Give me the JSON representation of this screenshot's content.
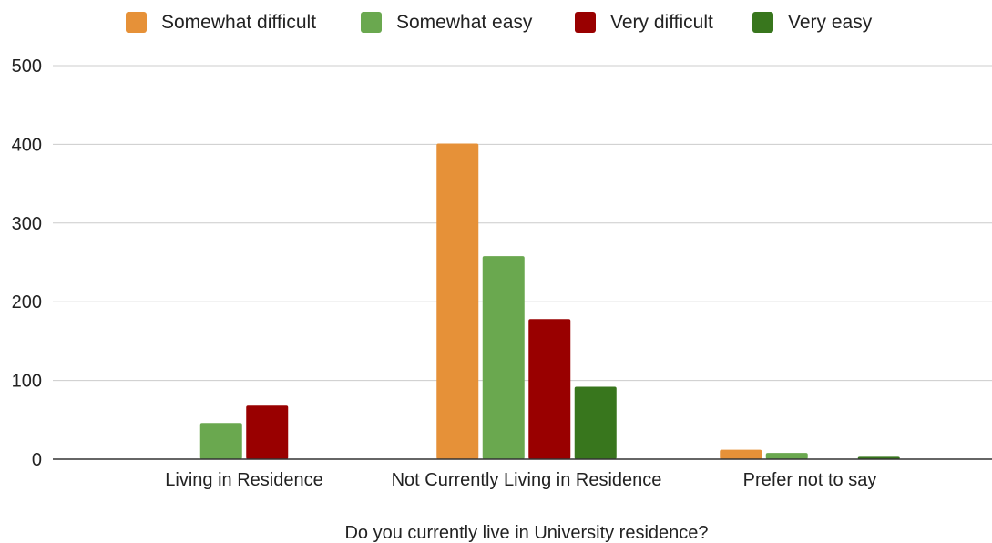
{
  "chart_data": {
    "type": "bar",
    "categories": [
      "Living in Residence",
      "Not Currently Living in Residence",
      "Prefer not to say"
    ],
    "series": [
      {
        "name": "Somewhat difficult",
        "color": "#e69138",
        "values": [
          0,
          401,
          12
        ]
      },
      {
        "name": "Somewhat easy",
        "color": "#6aa84f",
        "values": [
          46,
          258,
          8
        ]
      },
      {
        "name": "Very difficult",
        "color": "#990000",
        "values": [
          68,
          178,
          0
        ]
      },
      {
        "name": "Very easy",
        "color": "#38761d",
        "values": [
          0,
          92,
          3
        ]
      }
    ],
    "xlabel": "Do you currently live in University residence?",
    "ylabel": "",
    "ylim": [
      0,
      500
    ],
    "yticks": [
      0,
      100,
      200,
      300,
      400,
      500
    ],
    "grid": true,
    "legend_position": "top"
  }
}
